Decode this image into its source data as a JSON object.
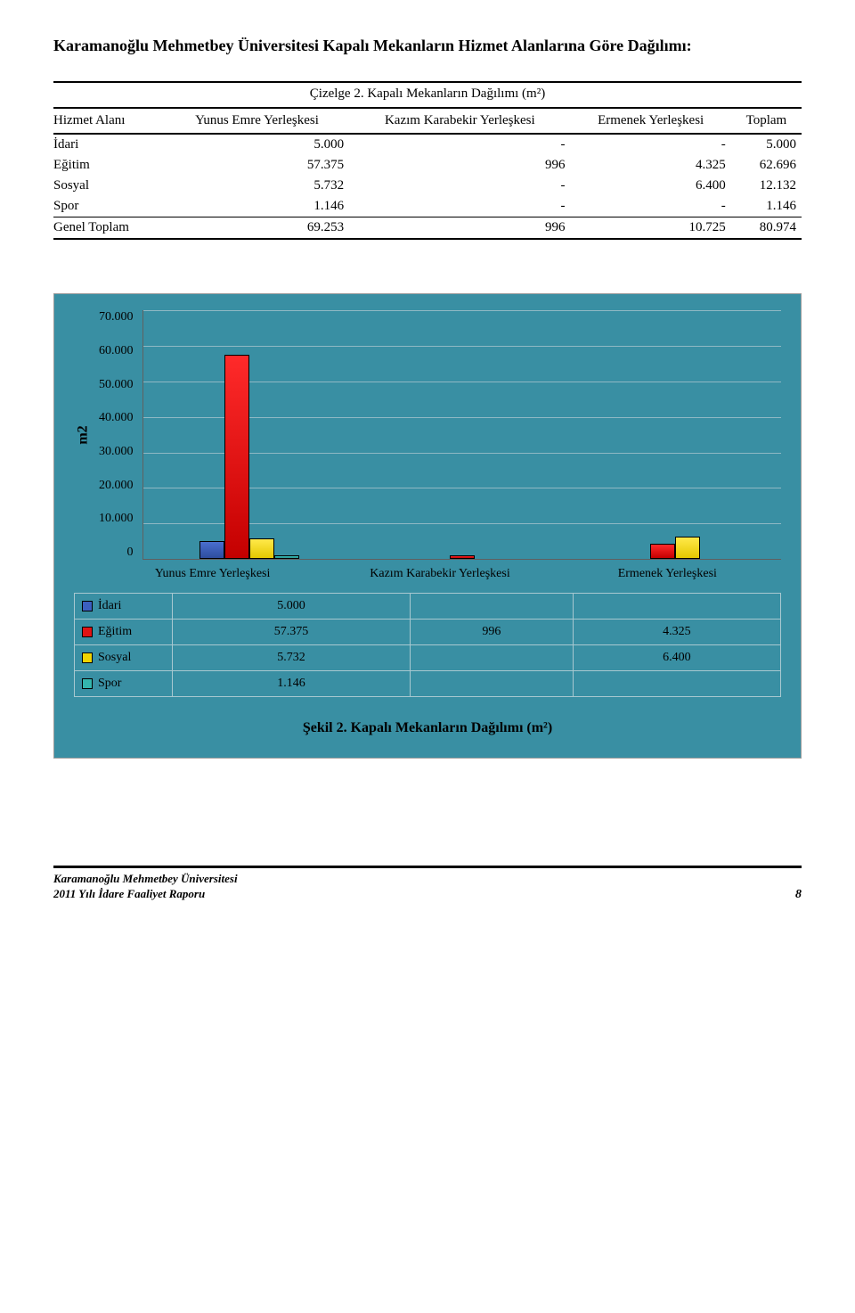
{
  "page": {
    "title": "Karamanoğlu Mehmetbey Üniversitesi Kapalı Mekanların Hizmet Alanlarına Göre Dağılımı:",
    "table": {
      "caption": "Çizelge 2. Kapalı Mekanların Dağılımı (m²)",
      "headers": {
        "c0": "Hizmet Alanı",
        "c1": "Yunus Emre Yerleşkesi",
        "c2": "Kazım Karabekir Yerleşkesi",
        "c3": "Ermenek Yerleşkesi",
        "c4": "Toplam"
      },
      "rows": [
        {
          "c0": "İdari",
          "c1": "5.000",
          "c2": "-",
          "c3": "-",
          "c4": "5.000"
        },
        {
          "c0": "Eğitim",
          "c1": "57.375",
          "c2": "996",
          "c3": "4.325",
          "c4": "62.696"
        },
        {
          "c0": "Sosyal",
          "c1": "5.732",
          "c2": "-",
          "c3": "6.400",
          "c4": "12.132"
        },
        {
          "c0": "Spor",
          "c1": "1.146",
          "c2": "-",
          "c3": "-",
          "c4": "1.146"
        },
        {
          "c0": "Genel Toplam",
          "c1": "69.253",
          "c2": "996",
          "c3": "10.725",
          "c4": "80.974"
        }
      ]
    },
    "chart": {
      "type": "bar",
      "y_axis_title": "m2",
      "y_ticks": [
        "70.000",
        "60.000",
        "50.000",
        "40.000",
        "30.000",
        "20.000",
        "10.000",
        "0"
      ],
      "y_max": 70000,
      "categories": [
        "Yunus Emre Yerleşkesi",
        "Kazım Karabekir Yerleşkesi",
        "Ermenek Yerleşkesi"
      ],
      "series": [
        {
          "name": "İdari",
          "color": "#3b5fc0",
          "class": "blue",
          "values": [
            5000,
            0,
            0
          ],
          "labels": [
            "5.000",
            "",
            ""
          ]
        },
        {
          "name": "Eğitim",
          "color": "#e01414",
          "class": "red",
          "values": [
            57375,
            996,
            4325
          ],
          "labels": [
            "57.375",
            "996",
            "4.325"
          ]
        },
        {
          "name": "Sosyal",
          "color": "#f0d400",
          "class": "yellow",
          "values": [
            5732,
            0,
            6400
          ],
          "labels": [
            "5.732",
            "",
            "6.400"
          ]
        },
        {
          "name": "Spor",
          "color": "#34b5ae",
          "class": "teal",
          "values": [
            1146,
            0,
            0
          ],
          "labels": [
            "1.146",
            "",
            ""
          ]
        }
      ],
      "background_color": "#398fa3",
      "grid_color": "#8fb8c4",
      "caption": "Şekil 2. Kapalı Mekanların Dağılımı (m²)"
    },
    "footer": {
      "line1": "Karamanoğlu Mehmetbey Üniversitesi",
      "line2": "2011 Yılı İdare Faaliyet Raporu",
      "page_no": "8"
    }
  }
}
